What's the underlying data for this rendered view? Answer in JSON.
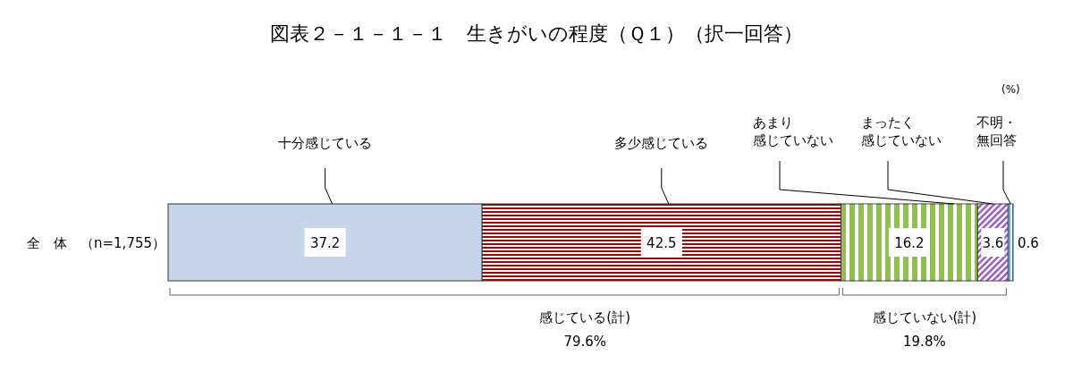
{
  "chart_data": {
    "type": "bar",
    "orientation": "horizontal",
    "stacked": true,
    "data_labels": true,
    "title": "図表２－１－１－１　生きがいの程度（Ｑ１）（択一回答）",
    "categories": [
      "全　体　（n=1,755）"
    ],
    "series": [
      {
        "name": "十分感じている",
        "color": "#c5d5ea",
        "values": [
          37.2
        ]
      },
      {
        "name": "多少感じている",
        "color": "#b00000",
        "values": [
          42.5
        ]
      },
      {
        "name": "あまり感じていない",
        "color": "#92c050",
        "values": [
          16.2
        ]
      },
      {
        "name": "まったく感じていない",
        "color": "#9a5bd9",
        "values": [
          3.6
        ]
      },
      {
        "name": "不明・無回答",
        "color": "#5aa9e0",
        "values": [
          0.6
        ]
      }
    ],
    "annotations": [
      "(%)",
      "感じている(計)",
      "79.6%",
      "感じていない(計)",
      "19.8%"
    ]
  }
}
